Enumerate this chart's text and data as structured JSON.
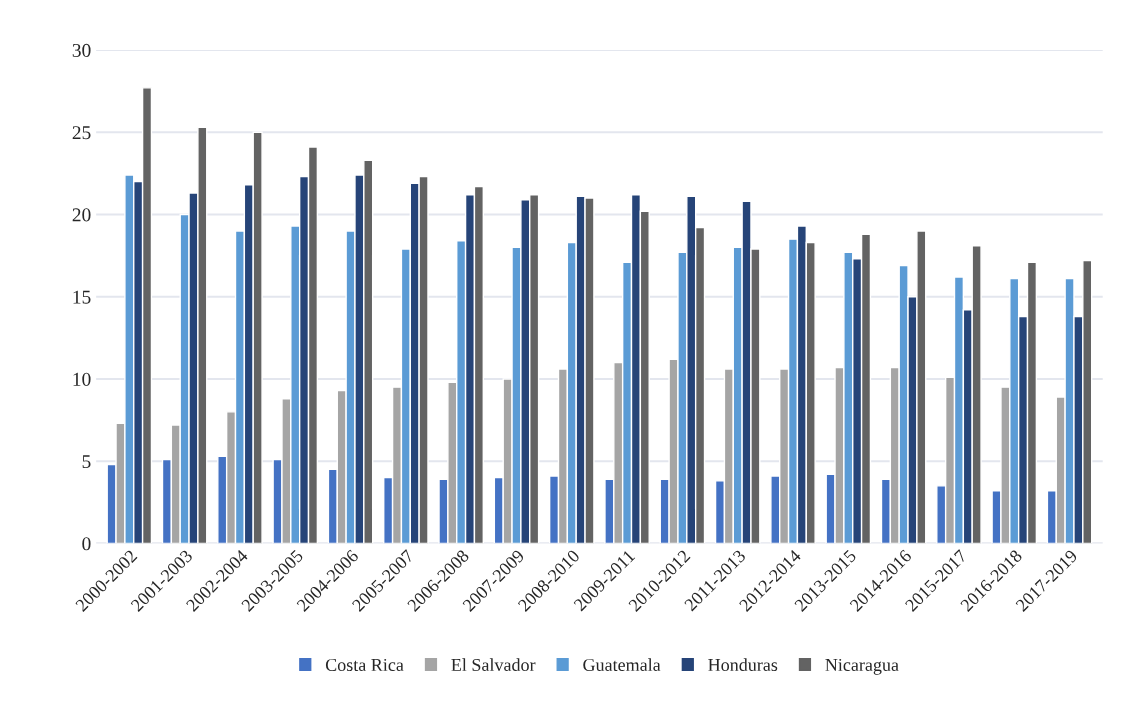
{
  "chart_data": {
    "type": "bar",
    "categories": [
      "2000-2002",
      "2001-2003",
      "2002-2004",
      "2003-2005",
      "2004-2006",
      "2005-2007",
      "2006-2008",
      "2007-2009",
      "2008-2010",
      "2009-2011",
      "2010-2012",
      "2011-2013",
      "2012-2014",
      "2013-2015",
      "2014-2016",
      "2015-2017",
      "2016-2018",
      "2017-2019"
    ],
    "series": [
      {
        "name": "Costa Rica",
        "color": "#4472c4",
        "values": [
          4.8,
          5.1,
          5.3,
          5.1,
          4.5,
          4.0,
          3.9,
          4.0,
          4.1,
          3.9,
          3.9,
          3.8,
          4.1,
          4.2,
          3.9,
          3.5,
          3.2,
          3.2
        ]
      },
      {
        "name": "El Salvador",
        "color": "#a5a5a5",
        "values": [
          7.3,
          7.2,
          8.0,
          8.8,
          9.3,
          9.5,
          9.8,
          10.0,
          10.6,
          11.0,
          11.2,
          10.6,
          10.6,
          10.7,
          10.7,
          10.1,
          9.5,
          8.9
        ]
      },
      {
        "name": "Guatemala",
        "color": "#5b9bd5",
        "values": [
          22.4,
          20.0,
          19.0,
          19.3,
          19.0,
          17.9,
          18.4,
          18.0,
          18.3,
          17.1,
          17.7,
          18.0,
          18.5,
          17.7,
          16.9,
          16.2,
          16.1,
          16.1
        ]
      },
      {
        "name": "Honduras",
        "color": "#264478",
        "values": [
          22.0,
          21.3,
          21.8,
          22.3,
          22.4,
          21.9,
          21.2,
          20.9,
          21.1,
          21.2,
          21.1,
          20.8,
          19.3,
          17.3,
          15.0,
          14.2,
          13.8,
          13.8
        ]
      },
      {
        "name": "Nicaragua",
        "color": "#636363",
        "values": [
          27.7,
          25.3,
          25.0,
          24.1,
          23.3,
          22.3,
          21.7,
          21.2,
          21.0,
          20.2,
          19.2,
          17.9,
          18.3,
          18.8,
          19.0,
          18.1,
          17.1,
          17.2
        ]
      }
    ],
    "ylim": [
      0,
      30
    ],
    "yticks": [
      0,
      5,
      10,
      15,
      20,
      25,
      30
    ],
    "grid": "y",
    "legend": "bottom"
  }
}
